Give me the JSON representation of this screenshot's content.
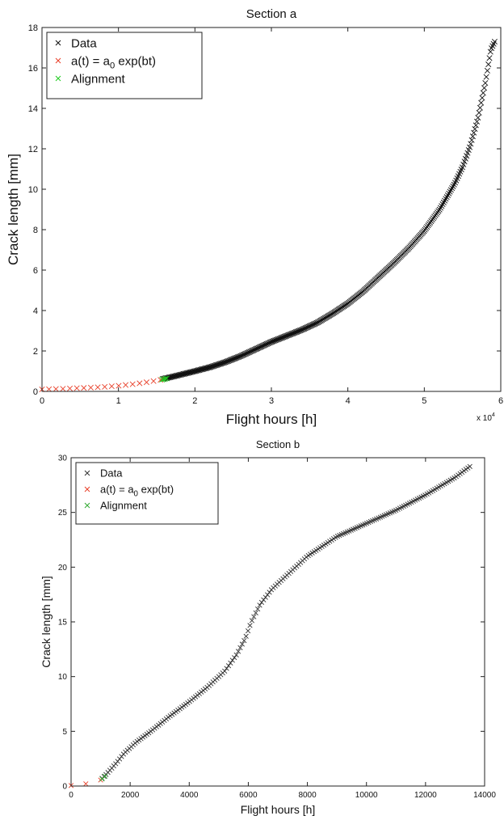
{
  "chart_data": [
    {
      "type": "scatter",
      "title": "Section a",
      "xlabel": "Flight hours [h]",
      "ylabel": "Crack length [mm]",
      "x_exponent_label": "x 10",
      "x_exponent_power": "4",
      "xlim": [
        0,
        6
      ],
      "ylim": [
        0,
        18
      ],
      "x_ticks": [
        "0",
        "1",
        "2",
        "3",
        "4",
        "5",
        "6"
      ],
      "y_ticks": [
        "0",
        "2",
        "4",
        "6",
        "8",
        "10",
        "12",
        "14",
        "16",
        "18"
      ],
      "grid": false,
      "legend_position": "top-left",
      "legend": [
        {
          "label": "Data",
          "marker": "×",
          "color": "#111111"
        },
        {
          "label": "a(t) = a",
          "sub": "0",
          "suffix": " exp(bt)",
          "marker": "×",
          "color": "#e8402a"
        },
        {
          "label": "Alignment",
          "marker": "×",
          "color": "#22cc22"
        }
      ],
      "series": [
        {
          "name": "Data",
          "color": "#111111",
          "points": [
            [
              1.58,
              0.62
            ],
            [
              1.7,
              0.72
            ],
            [
              1.85,
              0.86
            ],
            [
              2.0,
              1.0
            ],
            [
              2.2,
              1.2
            ],
            [
              2.4,
              1.45
            ],
            [
              2.6,
              1.75
            ],
            [
              2.8,
              2.1
            ],
            [
              3.0,
              2.45
            ],
            [
              3.2,
              2.75
            ],
            [
              3.4,
              3.05
            ],
            [
              3.6,
              3.4
            ],
            [
              3.8,
              3.85
            ],
            [
              4.0,
              4.35
            ],
            [
              4.2,
              4.95
            ],
            [
              4.4,
              5.65
            ],
            [
              4.6,
              6.35
            ],
            [
              4.8,
              7.1
            ],
            [
              5.0,
              7.95
            ],
            [
              5.2,
              9.0
            ],
            [
              5.4,
              10.3
            ],
            [
              5.5,
              11.1
            ],
            [
              5.6,
              12.15
            ],
            [
              5.7,
              13.5
            ],
            [
              5.8,
              15.3
            ],
            [
              5.87,
              16.9
            ],
            [
              5.92,
              17.3
            ]
          ]
        },
        {
          "name": "a(t) = a0 exp(bt)",
          "color": "#e8402a",
          "points": [
            [
              0.0,
              0.1
            ],
            [
              0.2,
              0.12
            ],
            [
              0.4,
              0.15
            ],
            [
              0.6,
              0.18
            ],
            [
              0.8,
              0.22
            ],
            [
              1.0,
              0.28
            ],
            [
              1.2,
              0.36
            ],
            [
              1.4,
              0.47
            ],
            [
              1.55,
              0.57
            ]
          ]
        },
        {
          "name": "Alignment",
          "color": "#22cc22",
          "points": [
            [
              1.57,
              0.58
            ],
            [
              1.6,
              0.61
            ],
            [
              1.63,
              0.64
            ]
          ]
        }
      ]
    },
    {
      "type": "scatter",
      "title": "Section b",
      "xlabel": "Flight hours [h]",
      "ylabel": "Crack length [mm]",
      "xlim": [
        0,
        14000
      ],
      "ylim": [
        0,
        30
      ],
      "x_ticks": [
        "0",
        "2000",
        "4000",
        "6000",
        "8000",
        "10000",
        "12000",
        "14000"
      ],
      "y_ticks": [
        "0",
        "5",
        "10",
        "15",
        "20",
        "25",
        "30"
      ],
      "grid": false,
      "legend_position": "top-left",
      "legend": [
        {
          "label": "Data",
          "marker": "×",
          "color": "#333333"
        },
        {
          "label": "a(t) = a",
          "sub": "0",
          "suffix": " exp(bt)",
          "marker": "×",
          "color": "#e8402a"
        },
        {
          "label": "Alignment",
          "marker": "×",
          "color": "#33aa33"
        }
      ],
      "series": [
        {
          "name": "Data",
          "color": "#333333",
          "points": [
            [
              1050,
              0.7
            ],
            [
              1200,
              1.1
            ],
            [
              1500,
              2.0
            ],
            [
              1800,
              3.0
            ],
            [
              2200,
              4.0
            ],
            [
              2700,
              5.0
            ],
            [
              3300,
              6.3
            ],
            [
              4000,
              7.7
            ],
            [
              4600,
              9.0
            ],
            [
              5200,
              10.5
            ],
            [
              5600,
              12.0
            ],
            [
              5900,
              13.5
            ],
            [
              6100,
              15.0
            ],
            [
              6400,
              16.6
            ],
            [
              6800,
              18.0
            ],
            [
              7400,
              19.5
            ],
            [
              8000,
              21.0
            ],
            [
              9000,
              22.8
            ],
            [
              10000,
              24.0
            ],
            [
              11000,
              25.2
            ],
            [
              12000,
              26.6
            ],
            [
              13000,
              28.2
            ],
            [
              13500,
              29.2
            ]
          ]
        },
        {
          "name": "a(t) = a0 exp(bt)",
          "color": "#e8402a",
          "points": [
            [
              0,
              0.05
            ],
            [
              500,
              0.2
            ],
            [
              1000,
              0.55
            ]
          ]
        },
        {
          "name": "Alignment",
          "color": "#33aa33",
          "points": [
            [
              1050,
              0.65
            ],
            [
              1150,
              0.9
            ]
          ]
        }
      ]
    }
  ]
}
